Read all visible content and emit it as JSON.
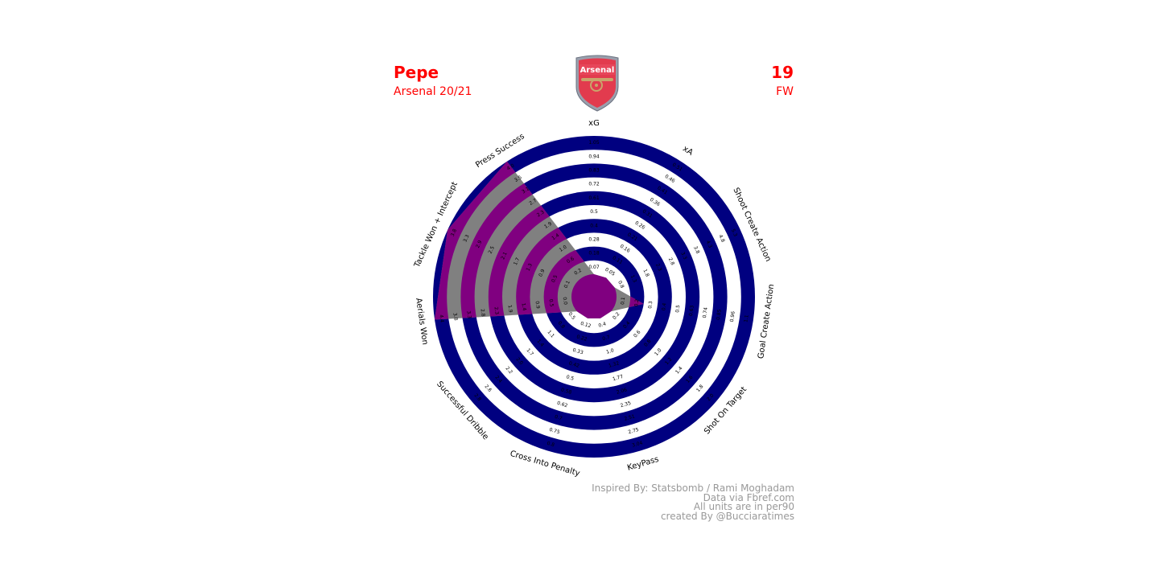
{
  "header": {
    "player_name": "Pepe",
    "team_season": "Arsenal 20/21",
    "shirt_number": "19",
    "position": "FW",
    "club_crest_icon": "arsenal-crest-icon",
    "club_crest_text": "Arsenal"
  },
  "footer": {
    "line1": "Inspired By: Statsbomb / Rami Moghadam",
    "line2": "Data via Fbref.com",
    "line3": "All units are in per90",
    "line4": "created By @Bucciaratimes"
  },
  "colors": {
    "title": "#ff0000",
    "ring": "#000080",
    "polygon_fill": "#808080",
    "polygon_highlight": "#800080",
    "footer_text": "#999999"
  },
  "chart_data": {
    "type": "radar",
    "title": "",
    "axes": [
      {
        "name": "xG",
        "value": 0.07,
        "ticks": [
          "0.07",
          "0.18",
          "0.28",
          "0.4",
          "0.5",
          "0.61",
          "0.72",
          "0.83",
          "0.94",
          "1.05"
        ]
      },
      {
        "name": "xA",
        "value": 0.05,
        "ticks": [
          "0.05",
          "0.11",
          "0.16",
          "0.21",
          "0.26",
          "0.31",
          "0.36",
          "0.41",
          "0.46",
          "0.51"
        ]
      },
      {
        "name": "Shoot Create Action",
        "value": 0.8,
        "ticks": [
          "0.8",
          "1.3",
          "1.8",
          "2.3",
          "2.8",
          "3.3",
          "3.8",
          "4.3",
          "4.8",
          "5.3"
        ]
      },
      {
        "name": "Goal Create Action",
        "value": 0.3,
        "ticks": [
          "0.1",
          "0.2",
          "0.3",
          "0.4",
          "0.5",
          "0.63",
          "0.74",
          "0.85",
          "0.96",
          "1.1"
        ]
      },
      {
        "name": "Shot On Target",
        "value": 0.2,
        "ticks": [
          "0.2",
          "0.4",
          "0.6",
          "0.8",
          "1.0",
          "1.2",
          "1.4",
          "1.6",
          "1.8",
          "2.0"
        ]
      },
      {
        "name": "KeyPass",
        "value": 0.4,
        "ticks": [
          "0.4",
          "0.7",
          "1.0",
          "1.32",
          "1.77",
          "2.06",
          "2.35",
          "2.51",
          "2.75",
          "3.04"
        ]
      },
      {
        "name": "Cross Into Penalty",
        "value": 0.12,
        "ticks": [
          "0.12",
          "0.22",
          "0.33",
          "0.42",
          "0.5",
          "0.58",
          "0.62",
          "0.7",
          "0.75",
          "0.8"
        ]
      },
      {
        "name": "Successful Dribble",
        "value": 0.5,
        "ticks": [
          "0.5",
          "0.8",
          "1.1",
          "1.4",
          "1.7",
          "2.0",
          "2.2",
          "2.4",
          "2.6",
          "2.8"
        ]
      },
      {
        "name": "Aerials Won",
        "value": 4.4,
        "ticks": [
          "0.0",
          "0.5",
          "0.9",
          "1.4",
          "1.9",
          "2.3",
          "2.8",
          "3.3",
          "3.8",
          "4.4"
        ]
      },
      {
        "name": "Tackle Won + Intercept",
        "value": 3.8,
        "ticks": [
          "0.1",
          "0.5",
          "0.9",
          "1.3",
          "1.7",
          "2.1",
          "2.5",
          "2.9",
          "3.3",
          "3.8"
        ]
      },
      {
        "name": "Press Success",
        "value": 4.0,
        "ticks": [
          "0.2",
          "0.6",
          "1.0",
          "1.4",
          "1.9",
          "2.3",
          "2.7",
          "3.1",
          "3.5",
          "4.0"
        ]
      }
    ]
  }
}
